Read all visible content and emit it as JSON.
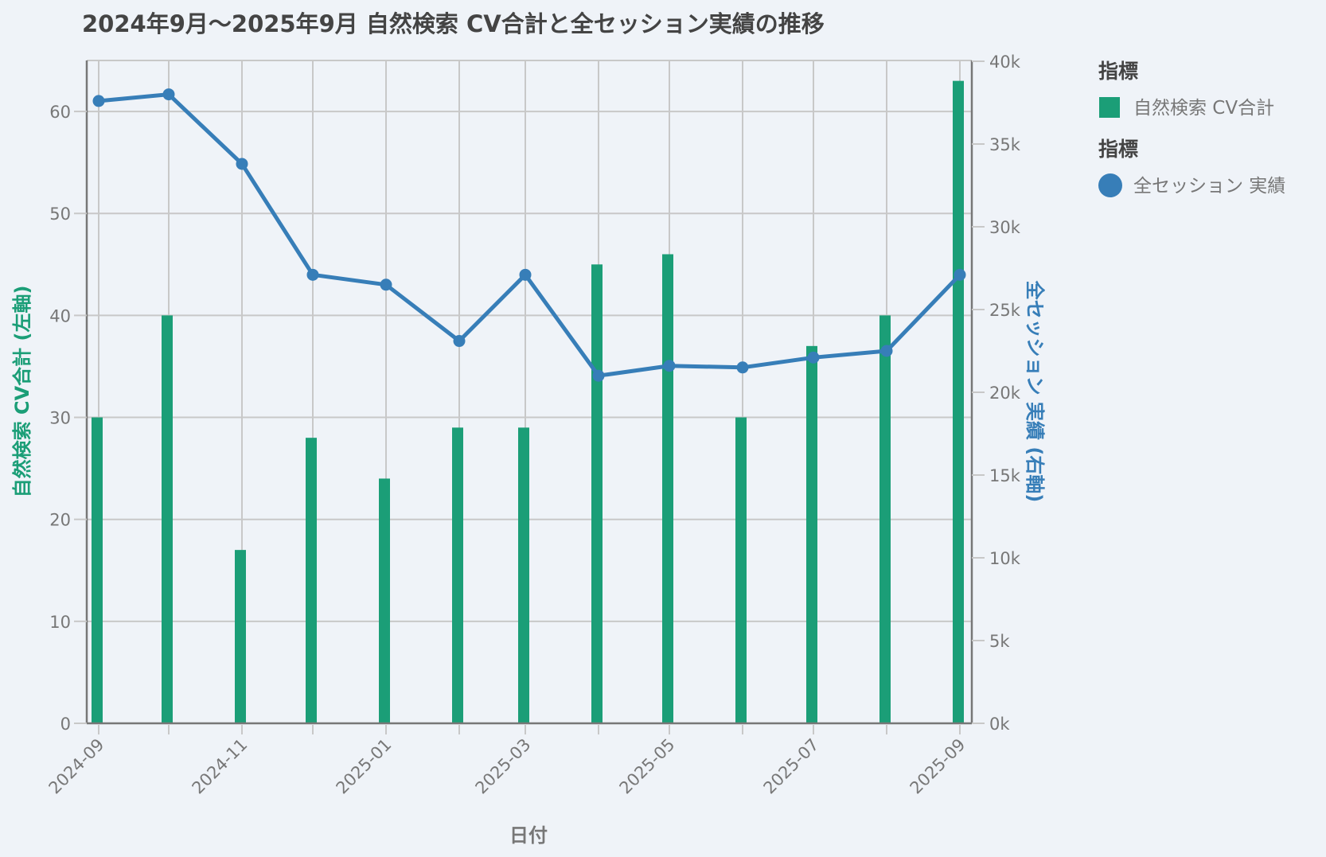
{
  "title": "2024年9月～2025年9月  自然検索  CV合計と全セッション実績の推移",
  "xlabel": "日付",
  "ylabel_left": "自然検索 CV合計 (左軸)",
  "ylabel_right": "全セッション 実績 (右軸)",
  "colors": {
    "bar": "#1b9e77",
    "line": "#377eb8",
    "left_title": "#1b9e77",
    "right_title": "#377eb8"
  },
  "x_tick_labels": [
    "2024-09",
    "2024-11",
    "2025-01",
    "2025-03",
    "2025-05",
    "2025-07",
    "2025-09"
  ],
  "left_ticks": [
    "0",
    "10",
    "20",
    "30",
    "40",
    "50",
    "60"
  ],
  "right_ticks": [
    "0k",
    "5k",
    "10k",
    "15k",
    "20k",
    "25k",
    "30k",
    "35k",
    "40k"
  ],
  "legend": [
    {
      "title": "指標",
      "label": "自然検索 CV合計",
      "symbol": "square"
    },
    {
      "title": "指標",
      "label": "全セッション 実績",
      "symbol": "circle"
    }
  ],
  "chart_data": {
    "type": "bar+line",
    "title": "2024年9月～2025年9月  自然検索  CV合計と全セッション実績の推移",
    "xlabel": "日付",
    "categories": [
      "2024-09",
      "2024-10",
      "2024-11",
      "2024-12",
      "2025-01",
      "2025-02",
      "2025-03",
      "2025-04",
      "2025-05",
      "2025-06",
      "2025-07",
      "2025-08",
      "2025-09"
    ],
    "series": [
      {
        "name": "自然検索 CV合計",
        "type": "bar",
        "axis": "left",
        "values": [
          30,
          40,
          17,
          28,
          24,
          29,
          29,
          45,
          46,
          30,
          37,
          40,
          63
        ]
      },
      {
        "name": "全セッション 実績",
        "type": "line",
        "axis": "right",
        "values": [
          37600,
          38000,
          33800,
          27100,
          26500,
          23100,
          27100,
          21000,
          21600,
          21500,
          22100,
          22500,
          27100
        ]
      }
    ],
    "ylabel_left": "自然検索 CV合計 (左軸)",
    "ylabel_right": "全セッション 実績 (右軸)",
    "ylim_left": [
      0,
      65
    ],
    "ylim_right": [
      0,
      40000
    ],
    "grid": true,
    "legend_position": "right"
  }
}
